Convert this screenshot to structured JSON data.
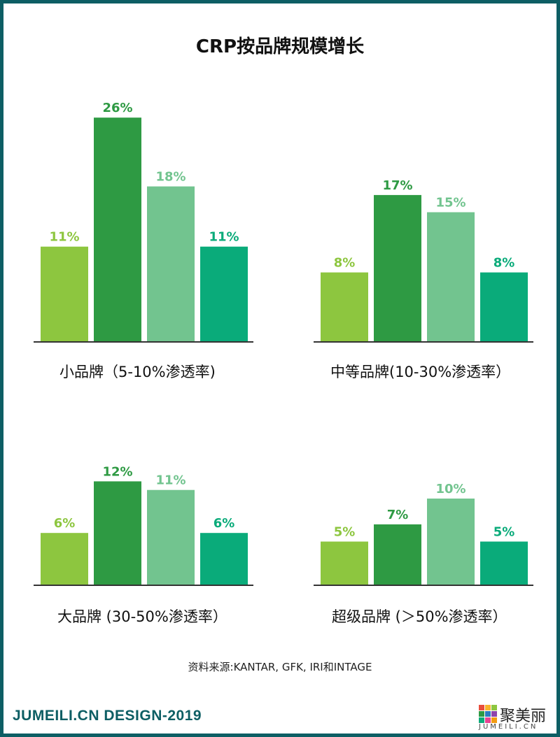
{
  "title": "CRP按品牌规模增长",
  "source": "资料来源:KANTAR, GFK, IRI和INTAGE",
  "footer": {
    "left_text": "JUMEILI.CN DESIGN-2019",
    "logo_name": "聚美丽",
    "logo_sub": "JUMEILI.CN",
    "logo_icon": "color-grid-logo-icon"
  },
  "colors": {
    "series": [
      "#8dc63f",
      "#2e9a43",
      "#72c48f",
      "#0aab7a"
    ],
    "border": "#0d5e64"
  },
  "chart_data": [
    {
      "type": "bar",
      "caption": "小品牌（5-10%渗透率)",
      "values": [
        11,
        26,
        18,
        11
      ],
      "labels": [
        "11%",
        "26%",
        "18%",
        "11%"
      ]
    },
    {
      "type": "bar",
      "caption": "中等品牌(10-30%渗透率）",
      "values": [
        8,
        17,
        15,
        8
      ],
      "labels": [
        "8%",
        "17%",
        "15%",
        "8%"
      ]
    },
    {
      "type": "bar",
      "caption": "大品牌 (30-50%渗透率）",
      "values": [
        6,
        12,
        11,
        6
      ],
      "labels": [
        "6%",
        "12%",
        "11%",
        "6%"
      ]
    },
    {
      "type": "bar",
      "caption": "超级品牌 (＞50%渗透率）",
      "values": [
        5,
        7,
        10,
        5
      ],
      "labels": [
        "5%",
        "7%",
        "10%",
        "5%"
      ]
    }
  ]
}
